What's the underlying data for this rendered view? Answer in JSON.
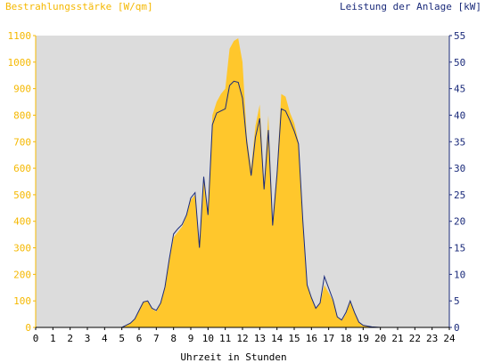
{
  "chart_data": {
    "type": "area",
    "title_left": "Bestrahlungsstärke [W/qm]",
    "title_right": "Leistung der Anlage [kW]",
    "xlabel": "Uhrzeit in Stunden",
    "xlim": [
      0,
      24
    ],
    "ylim_left": [
      0,
      1100
    ],
    "ylim_right": [
      0,
      55
    ],
    "x_ticks": [
      "0",
      "1",
      "2",
      "3",
      "4",
      "5",
      "6",
      "7",
      "8",
      "9",
      "10",
      "11",
      "12",
      "13",
      "14",
      "15",
      "16",
      "17",
      "18",
      "19",
      "20",
      "21",
      "22",
      "23",
      "24"
    ],
    "y_left_ticks": [
      0,
      100,
      200,
      300,
      400,
      500,
      600,
      700,
      800,
      900,
      1000,
      1100
    ],
    "y_right_ticks": [
      0,
      5,
      10,
      15,
      20,
      25,
      30,
      35,
      40,
      45,
      50,
      55
    ],
    "grid": false,
    "background": "#dcdcdc",
    "colors": {
      "irradiance": "#ffc72c",
      "power": "#1a2a7a",
      "left_axis": "#f5b800",
      "right_axis": "#1a2a7a"
    },
    "series": [
      {
        "name": "Bestrahlungsstärke",
        "axis": "left",
        "x": [
          0,
          5,
          5.25,
          5.5,
          5.75,
          6.0,
          6.25,
          6.5,
          6.75,
          7.0,
          7.25,
          7.5,
          7.75,
          8.0,
          8.25,
          8.5,
          8.75,
          9.0,
          9.25,
          9.5,
          9.75,
          10.0,
          10.25,
          10.5,
          10.75,
          11.0,
          11.25,
          11.5,
          11.75,
          12.0,
          12.25,
          12.5,
          12.75,
          13.0,
          13.25,
          13.5,
          13.75,
          14.0,
          14.25,
          14.5,
          14.75,
          15.0,
          15.25,
          15.5,
          15.75,
          16.0,
          16.25,
          16.5,
          16.75,
          17.0,
          17.25,
          17.5,
          17.75,
          18.0,
          18.25,
          18.5,
          18.75,
          19.0,
          19.5,
          20,
          24
        ],
        "y": [
          0,
          0,
          8,
          15,
          30,
          60,
          95,
          100,
          70,
          60,
          90,
          150,
          250,
          340,
          360,
          380,
          420,
          480,
          500,
          300,
          560,
          420,
          800,
          850,
          880,
          900,
          1050,
          1080,
          1090,
          1000,
          720,
          600,
          760,
          840,
          540,
          800,
          400,
          600,
          880,
          870,
          810,
          770,
          700,
          400,
          160,
          110,
          70,
          90,
          160,
          130,
          100,
          40,
          25,
          50,
          100,
          55,
          20,
          8,
          2,
          0,
          0
        ]
      },
      {
        "name": "Leistung der Anlage",
        "axis": "right",
        "x": [
          0,
          5,
          5.25,
          5.5,
          5.75,
          6.0,
          6.25,
          6.5,
          6.75,
          7.0,
          7.25,
          7.5,
          7.75,
          8.0,
          8.25,
          8.5,
          8.75,
          9.0,
          9.25,
          9.5,
          9.75,
          10.0,
          10.25,
          10.5,
          10.75,
          11.0,
          11.25,
          11.5,
          11.75,
          12.0,
          12.25,
          12.5,
          12.75,
          13.0,
          13.25,
          13.5,
          13.75,
          14.0,
          14.25,
          14.5,
          14.75,
          15.0,
          15.25,
          15.5,
          15.75,
          16.0,
          16.25,
          16.5,
          16.75,
          17.0,
          17.25,
          17.5,
          17.75,
          18.0,
          18.25,
          18.5,
          18.75,
          19.0,
          19.5,
          20,
          24
        ],
        "y": [
          0,
          0,
          0.4,
          0.8,
          1.6,
          3.2,
          4.8,
          5.0,
          3.6,
          3.2,
          4.6,
          7.6,
          12.8,
          17.6,
          18.6,
          19.4,
          21.2,
          24.4,
          25.4,
          15.0,
          28.4,
          21.2,
          38.2,
          40.4,
          40.8,
          41.2,
          45.6,
          46.4,
          46.2,
          43.2,
          34.8,
          28.6,
          35.8,
          39.4,
          26.0,
          37.2,
          19.2,
          28.8,
          41.2,
          40.8,
          39.0,
          37.0,
          34.6,
          20.0,
          8.0,
          5.6,
          3.6,
          4.6,
          9.6,
          7.4,
          5.2,
          2.0,
          1.4,
          2.8,
          5.0,
          2.8,
          1.0,
          0.4,
          0.1,
          0,
          0
        ]
      }
    ]
  }
}
